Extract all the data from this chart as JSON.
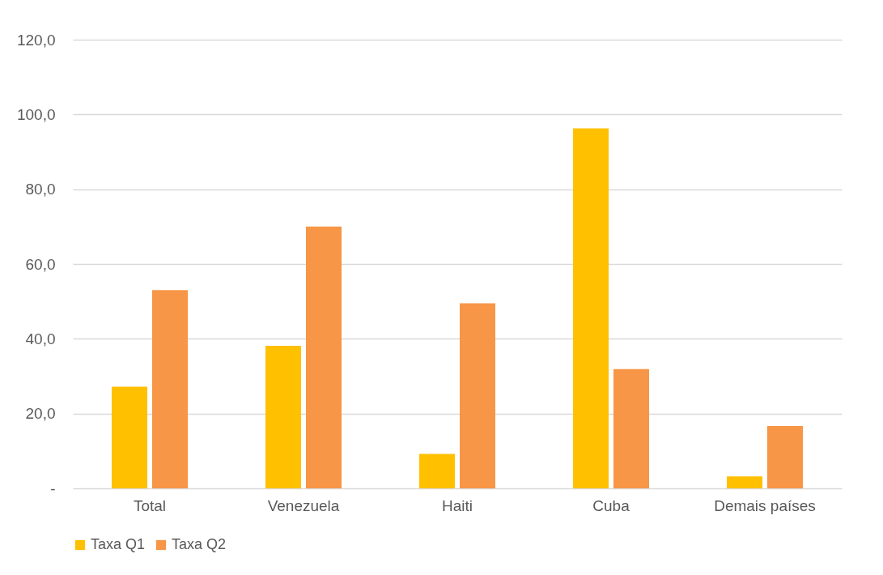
{
  "chart_data": {
    "type": "bar",
    "categories": [
      "Total",
      "Venezuela",
      "Haiti",
      "Cuba",
      "Demais países"
    ],
    "series": [
      {
        "name": "Taxa Q1",
        "color": "#ffc000",
        "values": [
          27.2,
          38.1,
          9.2,
          96.3,
          3.2
        ]
      },
      {
        "name": "Taxa Q2",
        "color": "#f79646",
        "values": [
          53.0,
          70.0,
          49.5,
          31.9,
          16.7
        ]
      }
    ],
    "ylim": [
      0,
      120
    ],
    "yticks": [
      {
        "value": 0,
        "label": "-"
      },
      {
        "value": 20,
        "label": "20,0"
      },
      {
        "value": 40,
        "label": "40,0"
      },
      {
        "value": 60,
        "label": "60,0"
      },
      {
        "value": 80,
        "label": "80,0"
      },
      {
        "value": 100,
        "label": "100,0"
      },
      {
        "value": 120,
        "label": "120,0"
      }
    ],
    "grid": "y",
    "legend": "bottom"
  }
}
